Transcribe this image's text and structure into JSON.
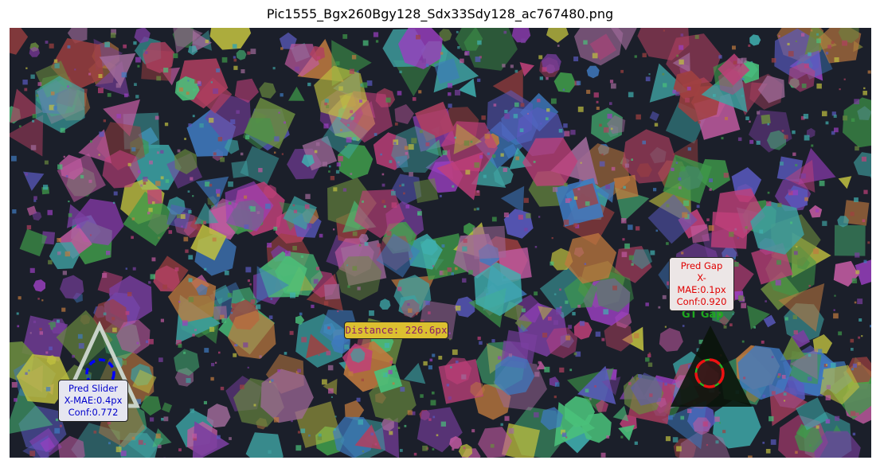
{
  "figure": {
    "title": "Pic1555_Bgx260Bgy128_Sdx33Sdy128_ac767480.png"
  },
  "slider_prediction": {
    "label": "Pred Slider",
    "x_mae": "X-MAE:0.4px",
    "conf": "Conf:0.772",
    "color": "#0000ff"
  },
  "gap_prediction": {
    "label": "Pred Gap",
    "x_mae": "X-MAE:0.1px",
    "conf": "Conf:0.920",
    "color": "#ff0000"
  },
  "ground_truth": {
    "label": "GT Gap",
    "color": "#22aa22"
  },
  "distance": {
    "text": "Distance: 226.6px"
  },
  "palette": {
    "background": "#1b1f2a",
    "slider_outline": "#c8d2c8",
    "gap_fill": "#0a140a"
  }
}
